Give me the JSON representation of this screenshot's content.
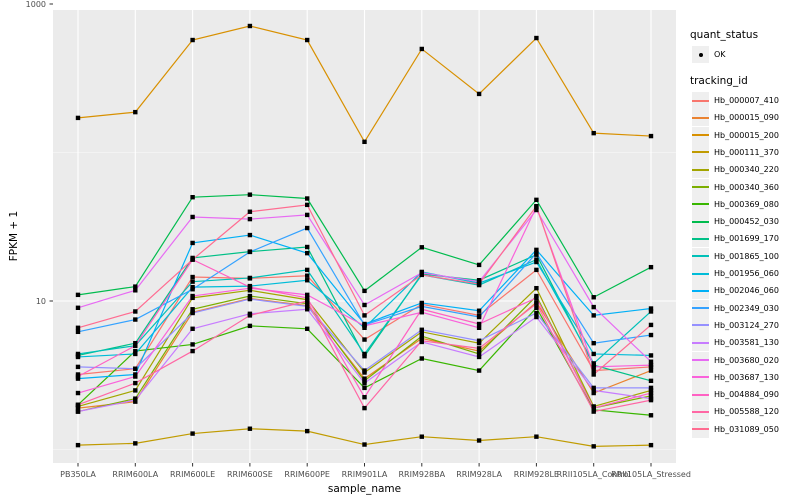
{
  "figure": {
    "y_axis": {
      "label": "FPKM + 1",
      "tick_labels": [
        "10",
        "1000"
      ]
    },
    "x_axis": {
      "label": "sample_name"
    },
    "legend": {
      "quant_status": {
        "title": "quant_status",
        "items": [
          {
            "label": "OK",
            "marker": "point",
            "color": "#000000"
          }
        ]
      },
      "tracking_id": {
        "title": "tracking_id"
      }
    }
  },
  "chart_data": {
    "type": "line",
    "title": "",
    "xlabel": "sample_name",
    "ylabel": "FPKM + 1",
    "y_scale": "log10",
    "y_ticks": [
      10,
      1000
    ],
    "y_minor_gridlines": [
      1,
      100
    ],
    "ylim_approx": [
      0.8,
      950
    ],
    "grid": true,
    "legend_position": "right",
    "point_marker": "filled-black-square",
    "x_categories": [
      "PB350LA",
      "RRIM600LA",
      "RRIM600LE",
      "RRIM600SE",
      "RRIM600PE",
      "RRIM901LA",
      "RRIM928BA",
      "RRIM928LA",
      "RRIM928LE",
      "RRII105LA_Control",
      "RRII105LA_Stressed"
    ],
    "series": [
      {
        "name": "Hb_000007_410",
        "color": "#F8766D",
        "values": [
          3.2,
          3.5,
          14.5,
          14.2,
          14.8,
          5.5,
          9.5,
          8.0,
          16.2,
          3.4,
          3.6
        ]
      },
      {
        "name": "Hb_000015_090",
        "color": "#EA8331",
        "values": [
          1.9,
          2.1,
          8.4,
          10.4,
          9.3,
          3.0,
          5.6,
          4.6,
          9.8,
          2.4,
          3.4
        ]
      },
      {
        "name": "Hb_000015_200",
        "color": "#D89000",
        "values": [
          171,
          187,
          572,
          711,
          572,
          118,
          498,
          248,
          590,
          135,
          129
        ]
      },
      {
        "name": "Hb_000111_370",
        "color": "#C09B00",
        "values": [
          1.07,
          1.1,
          1.28,
          1.38,
          1.33,
          1.08,
          1.22,
          1.15,
          1.22,
          1.05,
          1.07
        ]
      },
      {
        "name": "Hb_000340_220",
        "color": "#A3A500",
        "values": [
          1.95,
          2.5,
          10.5,
          11.8,
          10.2,
          3.3,
          6.2,
          5.2,
          12.2,
          1.95,
          2.5
        ]
      },
      {
        "name": "Hb_000340_360",
        "color": "#7CAE00",
        "values": [
          1.8,
          2.2,
          8.8,
          10.8,
          9.6,
          2.9,
          5.8,
          4.4,
          10.8,
          1.9,
          2.3
        ]
      },
      {
        "name": "Hb_000369_080",
        "color": "#39B600",
        "values": [
          2.0,
          4.6,
          5.1,
          6.8,
          6.5,
          2.6,
          4.1,
          3.4,
          9.0,
          1.85,
          1.7
        ]
      },
      {
        "name": "Hb_000452_030",
        "color": "#00BB4E",
        "values": [
          11.0,
          12.5,
          50,
          52,
          49,
          11.7,
          23,
          17.5,
          48,
          10.6,
          16.9
        ]
      },
      {
        "name": "Hb_001699_170",
        "color": "#00C087",
        "values": [
          4.3,
          5.2,
          19.5,
          21.5,
          23.1,
          4.25,
          15.2,
          13.8,
          20.5,
          3.7,
          2.9
        ]
      },
      {
        "name": "Hb_001865_100",
        "color": "#00C0B8",
        "values": [
          4.4,
          5.0,
          13.5,
          14.3,
          16.2,
          4.4,
          15.0,
          12.8,
          19.0,
          3.8,
          8.5
        ]
      },
      {
        "name": "Hb_001956_060",
        "color": "#00BCD8",
        "values": [
          4.2,
          4.4,
          12.4,
          12.6,
          13.8,
          6.6,
          15.7,
          13.2,
          18.3,
          4.4,
          4.3
        ]
      },
      {
        "name": "Hb_002046_060",
        "color": "#00B0F6",
        "values": [
          3.0,
          3.2,
          24.6,
          27.8,
          21.0,
          7.0,
          9.7,
          8.6,
          22.1,
          8.0,
          8.9
        ]
      },
      {
        "name": "Hb_002349_030",
        "color": "#35A2FF",
        "values": [
          6.2,
          7.5,
          12.0,
          21.4,
          31.0,
          6.9,
          9.2,
          7.8,
          21.0,
          5.2,
          5.9
        ]
      },
      {
        "name": "Hb_003124_270",
        "color": "#9590FF",
        "values": [
          3.6,
          3.5,
          8.3,
          10.3,
          9.2,
          3.4,
          6.4,
          5.4,
          8.3,
          2.6,
          2.6
        ]
      },
      {
        "name": "Hb_003581_130",
        "color": "#C77CFF",
        "values": [
          1.8,
          2.15,
          6.5,
          8.2,
          8.8,
          2.8,
          5.3,
          4.2,
          7.8,
          2.5,
          2.2
        ]
      },
      {
        "name": "Hb_003680_020",
        "color": "#E76BF3",
        "values": [
          9.0,
          11.8,
          36.8,
          35.6,
          38.0,
          9.4,
          15.5,
          13.5,
          41.0,
          9.1,
          3.9
        ]
      },
      {
        "name": "Hb_003687_130",
        "color": "#FA62DB",
        "values": [
          2.4,
          3.1,
          10.8,
          12.2,
          11.0,
          6.8,
          8.4,
          6.6,
          43.0,
          3.6,
          3.7
        ]
      },
      {
        "name": "Hb_004884_090",
        "color": "#FF61C3",
        "values": [
          3.1,
          5.0,
          19.0,
          12.4,
          10.5,
          2.25,
          8.8,
          7.0,
          10.5,
          1.9,
          2.4
        ]
      },
      {
        "name": "Hb_005588_120",
        "color": "#FF67A4",
        "values": [
          2.0,
          2.8,
          4.6,
          8.0,
          10.0,
          1.9,
          5.4,
          4.8,
          9.6,
          1.8,
          2.15
        ]
      },
      {
        "name": "Hb_031089_050",
        "color": "#FF6C91",
        "values": [
          6.6,
          8.5,
          19.0,
          39.9,
          44.4,
          8.0,
          15.0,
          13.0,
          43.5,
          3.2,
          6.9
        ]
      }
    ]
  },
  "colors": {
    "background": "#FFFFFF",
    "panel_bg": "#EBEBEB",
    "gridline": "#FFFFFF",
    "tick_mark": "#333333",
    "tick_text": "#4D4D4D",
    "axis_title_text": "#000000",
    "legend_key_bg": "#EFEFEF",
    "point": "#000000"
  }
}
